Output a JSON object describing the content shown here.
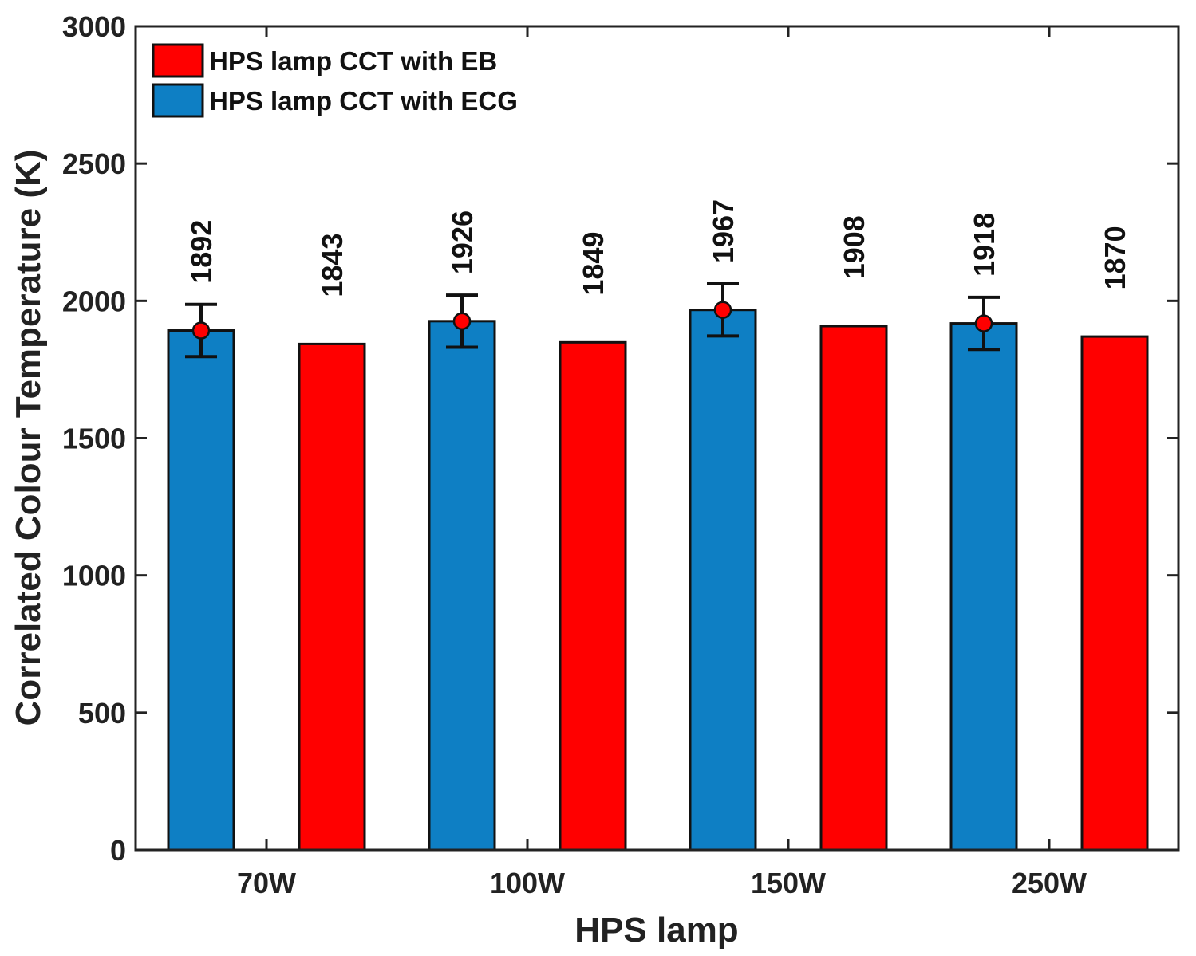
{
  "chart_data": {
    "type": "bar",
    "title": "",
    "xlabel": "HPS lamp",
    "ylabel": "Correlated Colour Temperature (K)",
    "ylim": [
      0,
      3000
    ],
    "yticks": [
      0,
      500,
      1000,
      1500,
      2000,
      2500,
      3000
    ],
    "categories": [
      "70W",
      "100W",
      "150W",
      "250W"
    ],
    "series": [
      {
        "name": "HPS lamp CCT with ECG",
        "color": "#0e7fc4",
        "values": [
          1892,
          1926,
          1967,
          1918
        ],
        "value_labels": [
          "1892",
          "1926",
          "1967",
          "1918"
        ],
        "error": [
          95,
          95,
          95,
          95
        ],
        "marker_color": "#ff0000"
      },
      {
        "name": "HPS lamp CCT with EB",
        "color": "#ff0000",
        "values": [
          1843,
          1849,
          1908,
          1870
        ],
        "value_labels": [
          "1843",
          "1849",
          "1908",
          "1870"
        ]
      }
    ],
    "legend": {
      "position": "top-left",
      "order": [
        1,
        0
      ]
    },
    "grid": false
  }
}
